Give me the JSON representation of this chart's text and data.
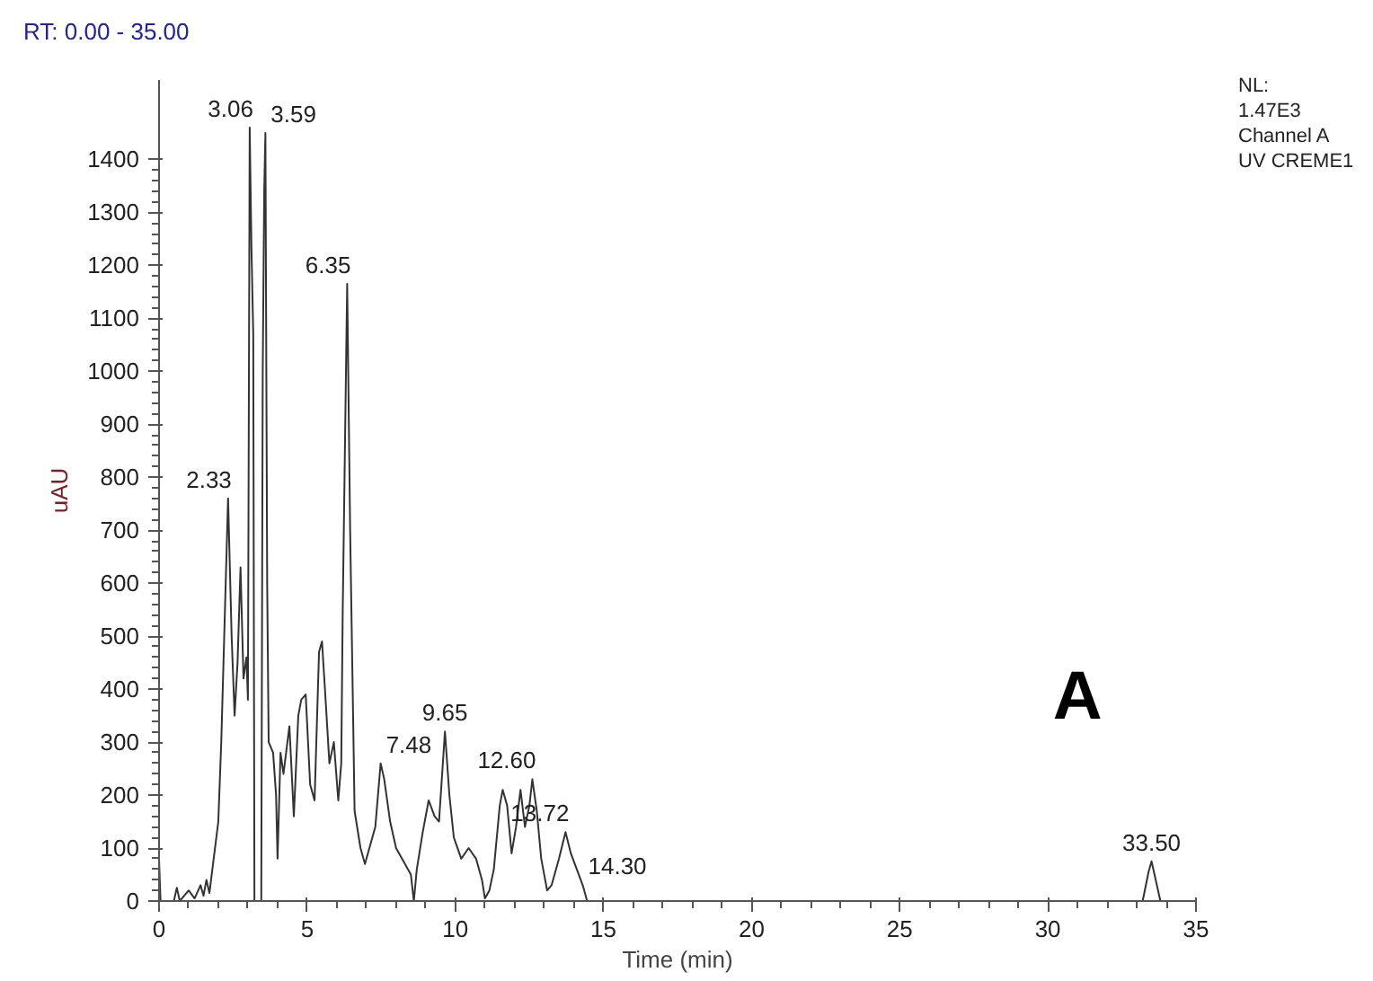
{
  "chart_data": {
    "type": "line",
    "xlabel": "Time (min)",
    "ylabel": "uAU",
    "xlim": [
      0,
      35
    ],
    "ylim": [
      0,
      1550
    ],
    "xticks": [
      0,
      5,
      10,
      15,
      20,
      25,
      30,
      35
    ],
    "yticks": [
      0,
      100,
      200,
      300,
      400,
      500,
      600,
      700,
      800,
      900,
      1000,
      1100,
      1200,
      1300,
      1400
    ],
    "marker": "none",
    "line_style": "solid",
    "series": [
      {
        "color": "#333333",
        "x": [
          0,
          0.05,
          0.5,
          0.6,
          0.7,
          1.0,
          1.2,
          1.4,
          1.5,
          1.6,
          1.7,
          1.8,
          2.0,
          2.1,
          2.2,
          2.33,
          2.45,
          2.55,
          2.65,
          2.75,
          2.85,
          2.95,
          3.0,
          3.06,
          3.12,
          3.18,
          3.22,
          3.45,
          3.5,
          3.55,
          3.59,
          3.65,
          3.7,
          3.85,
          3.95,
          4.0,
          4.1,
          4.2,
          4.4,
          4.55,
          4.7,
          4.8,
          4.95,
          5.1,
          5.25,
          5.4,
          5.5,
          5.6,
          5.75,
          5.9,
          6.05,
          6.15,
          6.2,
          6.35,
          6.45,
          6.55,
          6.6,
          6.8,
          6.95,
          7.1,
          7.3,
          7.48,
          7.6,
          7.8,
          8.0,
          8.2,
          8.5,
          8.6,
          8.7,
          8.9,
          9.1,
          9.3,
          9.45,
          9.65,
          9.8,
          9.95,
          10.2,
          10.45,
          10.7,
          10.9,
          11.0,
          11.15,
          11.3,
          11.5,
          11.6,
          11.75,
          11.9,
          12.05,
          12.2,
          12.35,
          12.5,
          12.6,
          12.75,
          12.9,
          13.1,
          13.25,
          13.5,
          13.72,
          13.9,
          14.1,
          14.3,
          14.45,
          33.2,
          33.4,
          33.5,
          33.6,
          33.8,
          35
        ],
        "values": [
          80,
          0,
          0,
          25,
          0,
          20,
          5,
          30,
          10,
          40,
          15,
          60,
          150,
          300,
          500,
          760,
          500,
          350,
          450,
          630,
          420,
          460,
          380,
          1460,
          1230,
          1070,
          0,
          0,
          1000,
          1340,
          1450,
          600,
          300,
          280,
          200,
          80,
          280,
          240,
          330,
          160,
          350,
          380,
          390,
          220,
          190,
          470,
          490,
          400,
          260,
          300,
          190,
          260,
          550,
          1165,
          700,
          350,
          170,
          100,
          70,
          100,
          140,
          260,
          230,
          150,
          100,
          80,
          50,
          0,
          60,
          130,
          190,
          160,
          150,
          320,
          200,
          120,
          80,
          100,
          80,
          40,
          5,
          20,
          60,
          180,
          210,
          180,
          90,
          140,
          210,
          140,
          180,
          230,
          170,
          80,
          20,
          30,
          80,
          130,
          90,
          60,
          30,
          0,
          0,
          55,
          75,
          50,
          0,
          0
        ]
      }
    ],
    "annotations": [
      "RT: 0.00 - 35.00",
      "NL:",
      "1.47E3",
      "Channel A",
      "UV CREME1",
      "A",
      {
        "text": "2.33",
        "x": 2.33,
        "y": 760
      },
      {
        "text": "3.06",
        "x": 3.06,
        "y": 1460
      },
      {
        "text": "3.59",
        "x": 3.59,
        "y": 1450
      },
      {
        "text": "6.35",
        "x": 6.35,
        "y": 1165
      },
      {
        "text": "7.48",
        "x": 7.48,
        "y": 260
      },
      {
        "text": "9.65",
        "x": 9.65,
        "y": 320
      },
      {
        "text": "12.60",
        "x": 12.6,
        "y": 230
      },
      {
        "text": "13.72",
        "x": 13.72,
        "y": 130
      },
      {
        "text": "14.30",
        "x": 14.3,
        "y": 30
      },
      {
        "text": "33.50",
        "x": 33.5,
        "y": 75
      }
    ]
  }
}
